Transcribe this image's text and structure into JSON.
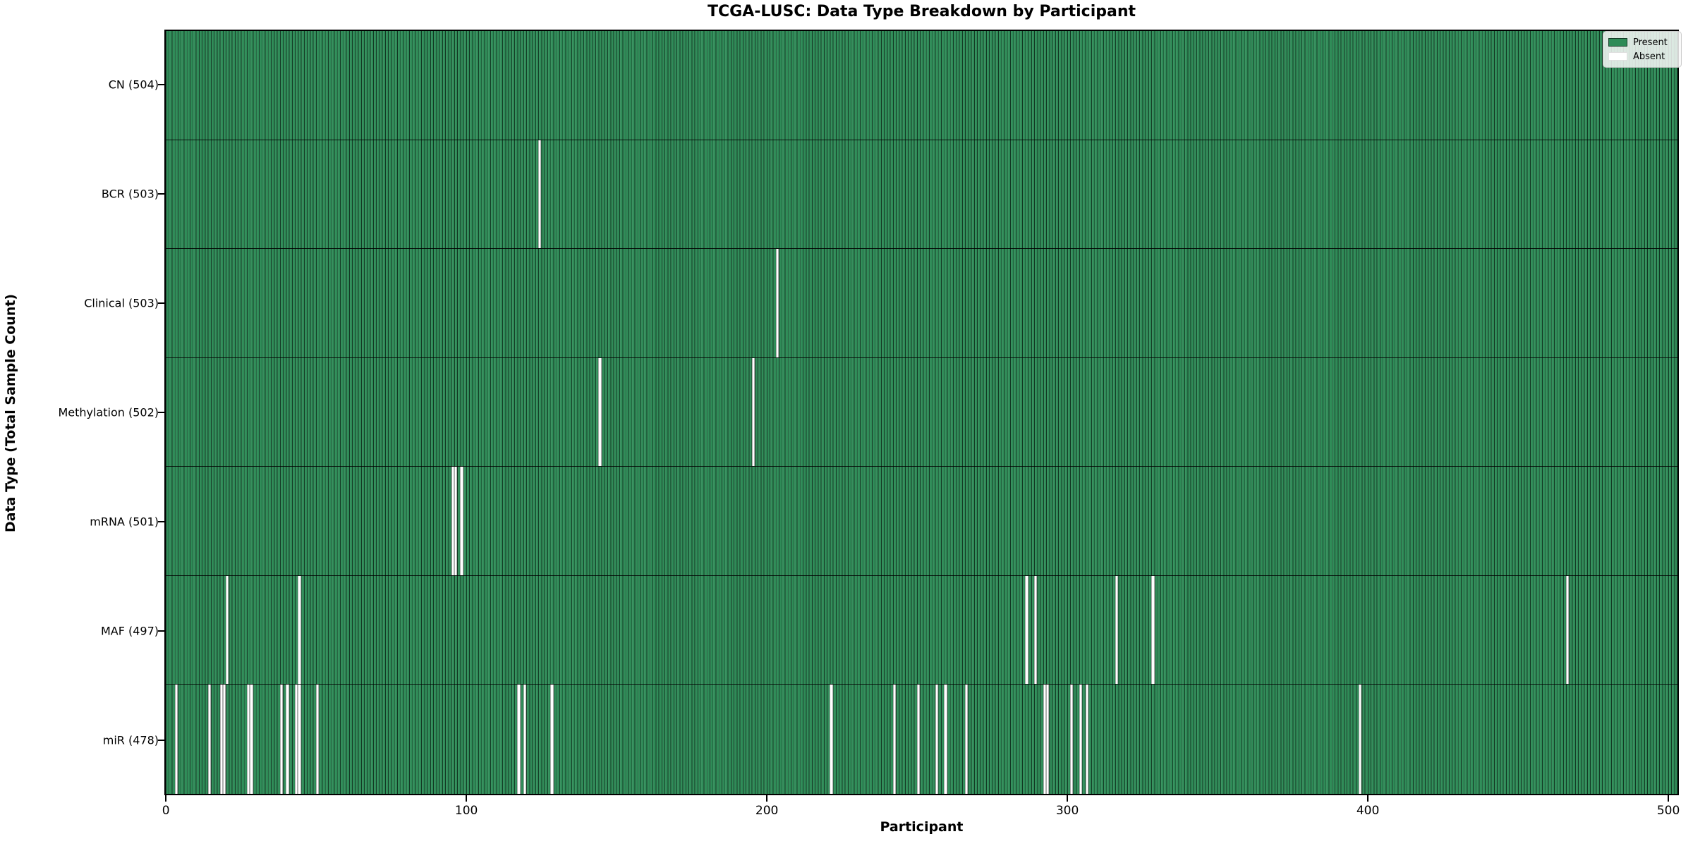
{
  "chart_data": {
    "type": "heatmap",
    "title": "TCGA-LUSC: Data Type Breakdown by Participant",
    "xlabel": "Participant",
    "ylabel": "Data Type (Total Sample Count)",
    "n_participants": 504,
    "x_ticks": [
      0,
      100,
      200,
      300,
      400,
      500
    ],
    "xlim": [
      -0.5,
      503.5
    ],
    "grid": false,
    "legend_position": "upper right",
    "colors": {
      "present": "#2e8b57",
      "absent": "#ffffff",
      "bar_edge": "#000000",
      "legend_border": "#cccccc"
    },
    "legend": [
      {
        "label": "Present",
        "color": "#2e8b57"
      },
      {
        "label": "Absent",
        "color": "#ffffff"
      }
    ],
    "rows": [
      {
        "label": "CN (504)",
        "data_type": "CN",
        "present_count": 504,
        "absent_participants": []
      },
      {
        "label": "BCR (503)",
        "data_type": "BCR",
        "present_count": 503,
        "absent_participants": [
          124
        ]
      },
      {
        "label": "Clinical (503)",
        "data_type": "Clinical",
        "present_count": 503,
        "absent_participants": [
          203
        ]
      },
      {
        "label": "Methylation (502)",
        "data_type": "Methylation",
        "present_count": 502,
        "absent_participants": [
          144,
          195
        ]
      },
      {
        "label": "mRNA (501)",
        "data_type": "mRNA",
        "present_count": 501,
        "absent_participants": [
          95,
          96,
          98
        ]
      },
      {
        "label": "MAF (497)",
        "data_type": "MAF",
        "present_count": 497,
        "absent_participants": [
          20,
          44,
          286,
          289,
          316,
          328,
          466
        ]
      },
      {
        "label": "miR (478)",
        "data_type": "miR",
        "present_count": 478,
        "absent_participants": [
          3,
          14,
          18,
          19,
          27,
          28,
          38,
          40,
          43,
          44,
          50,
          117,
          119,
          128,
          221,
          242,
          250,
          256,
          259,
          266,
          292,
          293,
          301,
          304,
          306,
          397
        ]
      }
    ]
  }
}
